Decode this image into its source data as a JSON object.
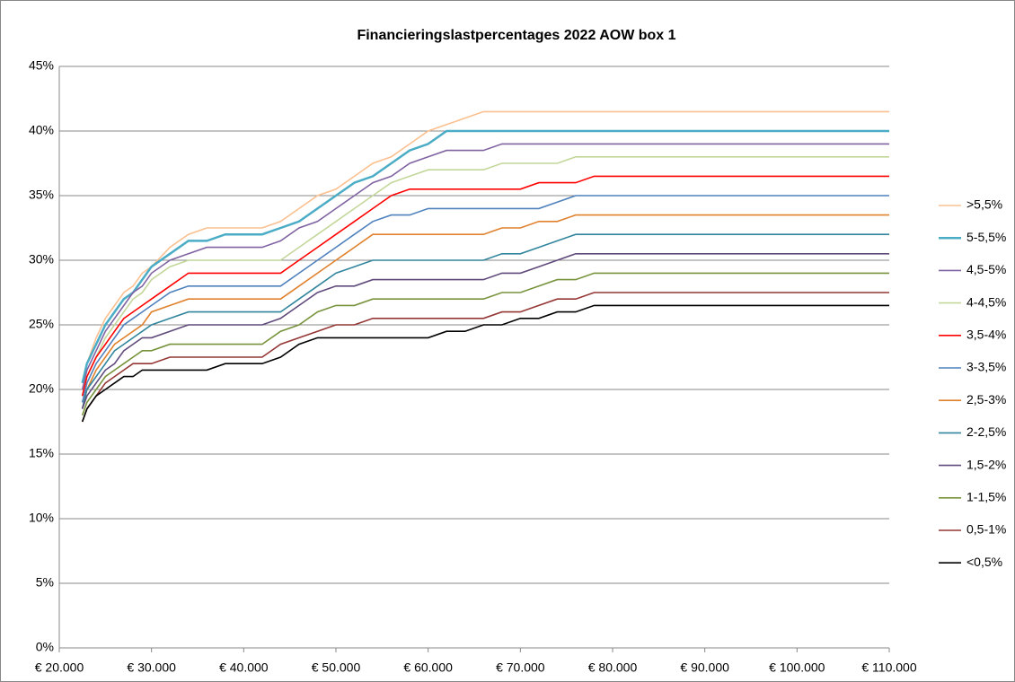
{
  "chart_data": {
    "type": "line",
    "title": "Financieringslastpercentages 2022 AOW box 1",
    "x": [
      22500,
      23000,
      24000,
      25000,
      26000,
      27000,
      28000,
      29000,
      30000,
      32000,
      34000,
      36000,
      38000,
      40000,
      42000,
      44000,
      46000,
      48000,
      50000,
      52000,
      54000,
      56000,
      58000,
      60000,
      62000,
      64000,
      66000,
      68000,
      70000,
      72000,
      74000,
      76000,
      78000,
      110000
    ],
    "xlim": [
      20000,
      110000
    ],
    "xticks": [
      {
        "value": 20000,
        "label": "€ 20.000"
      },
      {
        "value": 30000,
        "label": "€ 30.000"
      },
      {
        "value": 40000,
        "label": "€ 40.000"
      },
      {
        "value": 50000,
        "label": "€ 50.000"
      },
      {
        "value": 60000,
        "label": "€ 60.000"
      },
      {
        "value": 70000,
        "label": "€ 70.000"
      },
      {
        "value": 80000,
        "label": "€ 80.000"
      },
      {
        "value": 90000,
        "label": "€ 90.000"
      },
      {
        "value": 100000,
        "label": "€ 100.000"
      },
      {
        "value": 110000,
        "label": "€ 110.000"
      }
    ],
    "ylim": [
      0,
      45
    ],
    "yticks": [
      {
        "value": 0,
        "label": "0%"
      },
      {
        "value": 5,
        "label": "5%"
      },
      {
        "value": 10,
        "label": "10%"
      },
      {
        "value": 15,
        "label": "15%"
      },
      {
        "value": 20,
        "label": "20%"
      },
      {
        "value": 25,
        "label": "25%"
      },
      {
        "value": 30,
        "label": "30%"
      },
      {
        "value": 35,
        "label": "35%"
      },
      {
        "value": 40,
        "label": "40%"
      },
      {
        "value": 45,
        "label": "45%"
      }
    ],
    "grid": true,
    "legend": "right",
    "series": [
      {
        "name": ">5,5%",
        "color": "#fac090",
        "values": [
          20.5,
          22,
          24,
          25.5,
          26.5,
          27.5,
          28,
          29,
          29.5,
          31,
          32,
          32.5,
          32.5,
          32.5,
          32.5,
          33,
          34,
          35,
          35.5,
          36.5,
          37.5,
          38,
          39,
          40,
          40.5,
          41,
          41.5,
          41.5,
          41.5,
          41.5,
          41.5,
          41.5,
          41.5,
          41.5
        ]
      },
      {
        "name": "5-5,5%",
        "color": "#4bacc6",
        "values": [
          20.5,
          22,
          23.5,
          25,
          26,
          27,
          27.5,
          28.5,
          29.5,
          30.5,
          31.5,
          31.5,
          32,
          32,
          32,
          32.5,
          33,
          34,
          35,
          36,
          36.5,
          37.5,
          38.5,
          39,
          40,
          40,
          40,
          40,
          40,
          40,
          40,
          40,
          40,
          40
        ]
      },
      {
        "name": "4,5-5%",
        "color": "#8064a2",
        "values": [
          20,
          21.5,
          23,
          24.5,
          25.5,
          26.5,
          27.5,
          28,
          29,
          30,
          30.5,
          31,
          31,
          31,
          31,
          31.5,
          32.5,
          33,
          34,
          35,
          36,
          36.5,
          37.5,
          38,
          38.5,
          38.5,
          38.5,
          39,
          39,
          39,
          39,
          39,
          39,
          39
        ]
      },
      {
        "name": "4-4,5%",
        "color": "#c4d79b",
        "values": [
          19.5,
          21,
          22.5,
          24,
          25,
          26,
          27,
          27.5,
          28.5,
          29.5,
          30,
          30,
          30,
          30,
          30,
          30,
          31,
          32,
          33,
          34,
          35,
          36,
          36.5,
          37,
          37,
          37,
          37,
          37.5,
          37.5,
          37.5,
          37.5,
          38,
          38,
          38
        ]
      },
      {
        "name": "3,5-4%",
        "color": "#ff0000",
        "values": [
          19.5,
          21,
          22.5,
          23.5,
          24.5,
          25.5,
          26,
          26.5,
          27,
          28,
          29,
          29,
          29,
          29,
          29,
          29,
          30,
          31,
          32,
          33,
          34,
          35,
          35.5,
          35.5,
          35.5,
          35.5,
          35.5,
          35.5,
          35.5,
          36,
          36,
          36,
          36.5,
          36.5
        ]
      },
      {
        "name": "3-3,5%",
        "color": "#4f81bd",
        "values": [
          19,
          20.5,
          22,
          23,
          24,
          25,
          25.5,
          26,
          26.5,
          27.5,
          28,
          28,
          28,
          28,
          28,
          28,
          29,
          30,
          31,
          32,
          33,
          33.5,
          33.5,
          34,
          34,
          34,
          34,
          34,
          34,
          34,
          34.5,
          35,
          35,
          35
        ]
      },
      {
        "name": "2,5-3%",
        "color": "#e0812e",
        "values": [
          18.5,
          20,
          21.5,
          22.5,
          23.5,
          24,
          24.5,
          25,
          26,
          26.5,
          27,
          27,
          27,
          27,
          27,
          27,
          28,
          29,
          30,
          31,
          32,
          32,
          32,
          32,
          32,
          32,
          32,
          32.5,
          32.5,
          33,
          33,
          33.5,
          33.5,
          33.5
        ]
      },
      {
        "name": "2-2,5%",
        "color": "#31859c",
        "values": [
          18.5,
          20,
          21,
          22,
          23,
          23.5,
          24,
          24.5,
          25,
          25.5,
          26,
          26,
          26,
          26,
          26,
          26,
          27,
          28,
          29,
          29.5,
          30,
          30,
          30,
          30,
          30,
          30,
          30,
          30.5,
          30.5,
          31,
          31.5,
          32,
          32,
          32
        ]
      },
      {
        "name": "1,5-2%",
        "color": "#604a7b",
        "values": [
          18.5,
          19.5,
          20.5,
          21.5,
          22,
          23,
          23.5,
          24,
          24,
          24.5,
          25,
          25,
          25,
          25,
          25,
          25.5,
          26.5,
          27.5,
          28,
          28,
          28.5,
          28.5,
          28.5,
          28.5,
          28.5,
          28.5,
          28.5,
          29,
          29,
          29.5,
          30,
          30.5,
          30.5,
          30.5
        ]
      },
      {
        "name": "1-1,5%",
        "color": "#77933c",
        "values": [
          18,
          19,
          20,
          21,
          21.5,
          22,
          22.5,
          23,
          23,
          23.5,
          23.5,
          23.5,
          23.5,
          23.5,
          23.5,
          24.5,
          25,
          26,
          26.5,
          26.5,
          27,
          27,
          27,
          27,
          27,
          27,
          27,
          27.5,
          27.5,
          28,
          28.5,
          28.5,
          29,
          29
        ]
      },
      {
        "name": "0,5-1%",
        "color": "#943634",
        "values": [
          17.5,
          18.5,
          19.5,
          20.5,
          21,
          21.5,
          22,
          22,
          22,
          22.5,
          22.5,
          22.5,
          22.5,
          22.5,
          22.5,
          23.5,
          24,
          24.5,
          25,
          25,
          25.5,
          25.5,
          25.5,
          25.5,
          25.5,
          25.5,
          25.5,
          26,
          26,
          26.5,
          27,
          27,
          27.5,
          27.5
        ]
      },
      {
        "name": "<0,5%",
        "color": "#000000",
        "values": [
          17.5,
          18.5,
          19.5,
          20,
          20.5,
          21,
          21,
          21.5,
          21.5,
          21.5,
          21.5,
          21.5,
          22,
          22,
          22,
          22.5,
          23.5,
          24,
          24,
          24,
          24,
          24,
          24,
          24,
          24.5,
          24.5,
          25,
          25,
          25.5,
          25.5,
          26,
          26,
          26.5,
          26.5
        ]
      }
    ]
  }
}
